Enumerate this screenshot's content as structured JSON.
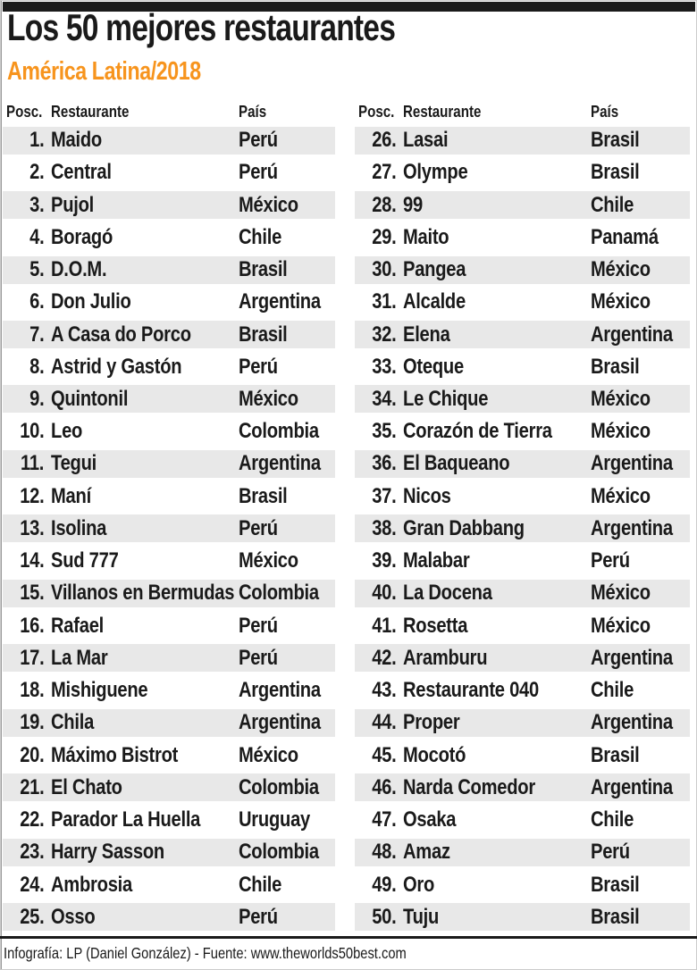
{
  "header": {
    "title": "Los 50 mejores restaurantes",
    "subtitle": "América Latina/2018"
  },
  "colors": {
    "accent": "#F7941D",
    "stripe": "#E8E8E8",
    "bar": "#1B1B1B",
    "text": "#1A1A1A"
  },
  "table": {
    "headers": {
      "posc": "Posc.",
      "restaurante": "Restaurante",
      "pais": "País"
    },
    "left_rows": [
      {
        "pos": "1.",
        "name": "Maido",
        "country": "Perú"
      },
      {
        "pos": "2.",
        "name": "Central",
        "country": "Perú"
      },
      {
        "pos": "3.",
        "name": "Pujol",
        "country": "México"
      },
      {
        "pos": "4.",
        "name": "Boragó",
        "country": "Chile"
      },
      {
        "pos": "5.",
        "name": "D.O.M.",
        "country": "Brasil"
      },
      {
        "pos": "6.",
        "name": "Don Julio",
        "country": "Argentina"
      },
      {
        "pos": "7.",
        "name": "A Casa do Porco",
        "country": "Brasil"
      },
      {
        "pos": "8.",
        "name": "Astrid y Gastón",
        "country": "Perú"
      },
      {
        "pos": "9.",
        "name": "Quintonil",
        "country": "México"
      },
      {
        "pos": "10.",
        "name": "Leo",
        "country": "Colombia"
      },
      {
        "pos": "11.",
        "name": "Tegui",
        "country": "Argentina"
      },
      {
        "pos": "12.",
        "name": "Maní",
        "country": "Brasil"
      },
      {
        "pos": "13.",
        "name": "Isolina",
        "country": "Perú"
      },
      {
        "pos": "14.",
        "name": "Sud 777",
        "country": "México"
      },
      {
        "pos": "15.",
        "name": "Villanos en Bermudas",
        "country": "Colombia"
      },
      {
        "pos": "16.",
        "name": "Rafael",
        "country": "Perú"
      },
      {
        "pos": "17.",
        "name": "La Mar",
        "country": "Perú"
      },
      {
        "pos": "18.",
        "name": "Mishiguene",
        "country": "Argentina"
      },
      {
        "pos": "19.",
        "name": "Chila",
        "country": "Argentina"
      },
      {
        "pos": "20.",
        "name": "Máximo Bistrot",
        "country": "México"
      },
      {
        "pos": "21.",
        "name": "El Chato",
        "country": "Colombia"
      },
      {
        "pos": "22.",
        "name": "Parador La Huella",
        "country": "Uruguay"
      },
      {
        "pos": "23.",
        "name": "Harry Sasson",
        "country": "Colombia"
      },
      {
        "pos": "24.",
        "name": "Ambrosia",
        "country": "Chile"
      },
      {
        "pos": "25.",
        "name": "Osso",
        "country": "Perú"
      }
    ],
    "right_rows": [
      {
        "pos": "26.",
        "name": "Lasai",
        "country": "Brasil"
      },
      {
        "pos": "27.",
        "name": "Olympe",
        "country": "Brasil"
      },
      {
        "pos": "28.",
        "name": "99",
        "country": "Chile"
      },
      {
        "pos": "29.",
        "name": "Maito",
        "country": "Panamá"
      },
      {
        "pos": "30.",
        "name": "Pangea",
        "country": "México"
      },
      {
        "pos": "31.",
        "name": "Alcalde",
        "country": "México"
      },
      {
        "pos": "32.",
        "name": "Elena",
        "country": "Argentina"
      },
      {
        "pos": "33.",
        "name": "Oteque",
        "country": "Brasil"
      },
      {
        "pos": "34.",
        "name": "Le Chique",
        "country": "México"
      },
      {
        "pos": "35.",
        "name": "Corazón de Tierra",
        "country": "México"
      },
      {
        "pos": "36.",
        "name": "El Baqueano",
        "country": "Argentina"
      },
      {
        "pos": "37.",
        "name": "Nicos",
        "country": "México"
      },
      {
        "pos": "38.",
        "name": "Gran Dabbang",
        "country": "Argentina"
      },
      {
        "pos": "39.",
        "name": "Malabar",
        "country": "Perú"
      },
      {
        "pos": "40.",
        "name": "La Docena",
        "country": "México"
      },
      {
        "pos": "41.",
        "name": "Rosetta",
        "country": "México"
      },
      {
        "pos": "42.",
        "name": "Aramburu",
        "country": "Argentina"
      },
      {
        "pos": "43.",
        "name": "Restaurante 040",
        "country": "Chile"
      },
      {
        "pos": "44.",
        "name": "Proper",
        "country": "Argentina"
      },
      {
        "pos": "45.",
        "name": "Mocotó",
        "country": "Brasil"
      },
      {
        "pos": "46.",
        "name": "Narda Comedor",
        "country": "Argentina"
      },
      {
        "pos": "47.",
        "name": "Osaka",
        "country": "Chile"
      },
      {
        "pos": "48.",
        "name": "Amaz",
        "country": "Perú"
      },
      {
        "pos": "49.",
        "name": "Oro",
        "country": "Brasil"
      },
      {
        "pos": "50.",
        "name": "Tuju",
        "country": "Brasil"
      }
    ]
  },
  "footer": {
    "credit": "Infografía: LP (Daniel González) - Fuente: www.theworlds50best.com"
  }
}
